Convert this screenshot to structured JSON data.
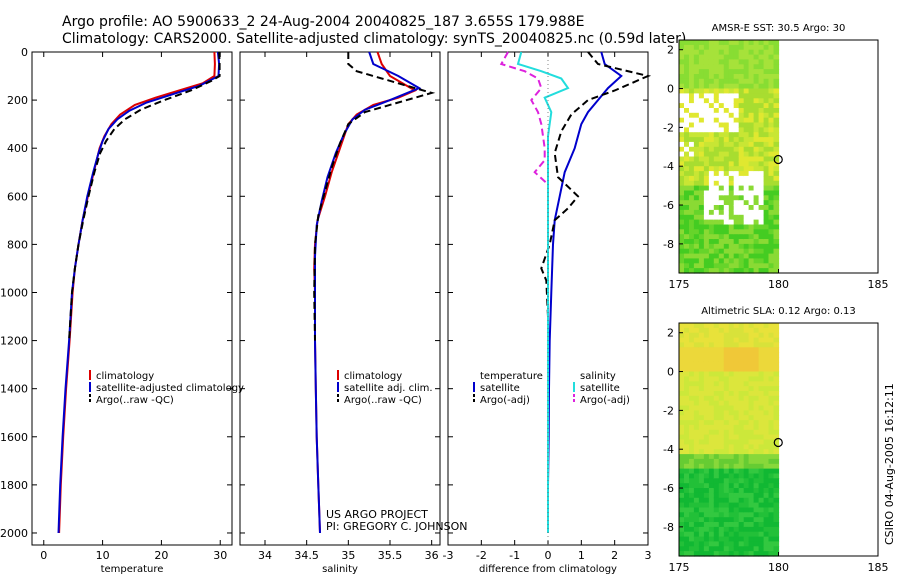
{
  "header": {
    "line1": "Argo profile: AO 5900633_2 24-Aug-2004 20040825_187 3.655S 179.988E",
    "line2": "Climatology: CARS2000. Satellite-adjusted climatology: synTS_20040825.nc (0.59d later)"
  },
  "side_label": "CSIRO 04-Aug-2005 16:12:11",
  "credit": {
    "line1": "US ARGO PROJECT",
    "line2": "PI: GREGORY C. JOHNSON"
  },
  "colors": {
    "climatology": "#dd0000",
    "satellite": "#0000cc",
    "argo": "#000000",
    "sal_satellite": "#22dddd",
    "sal_argo": "#dd22dd"
  },
  "chart_data": [
    {
      "type": "line",
      "xlabel": "temperature",
      "ylabel": "",
      "xlim": [
        -2,
        32
      ],
      "ylim": [
        2050,
        0
      ],
      "y_reversed": true,
      "xticks": [
        0,
        10,
        20,
        30
      ],
      "yticks": [
        0,
        200,
        400,
        600,
        800,
        1000,
        1200,
        1400,
        1600,
        1800,
        2000
      ],
      "legend": [
        "climatology",
        "satellite-adjusted climatology",
        "Argo(..raw -QC)"
      ],
      "legend_position": "lower-right",
      "series": [
        {
          "name": "climatology",
          "style": "solid",
          "color": "#dd0000",
          "points": [
            [
              29.0,
              0
            ],
            [
              29.1,
              50
            ],
            [
              29.0,
              100
            ],
            [
              27.0,
              130
            ],
            [
              23.0,
              160
            ],
            [
              19.0,
              190
            ],
            [
              15.5,
              220
            ],
            [
              13.0,
              260
            ],
            [
              11.5,
              300
            ],
            [
              10.3,
              350
            ],
            [
              9.5,
              400
            ],
            [
              8.5,
              500
            ],
            [
              7.5,
              600
            ],
            [
              6.6,
              700
            ],
            [
              5.9,
              800
            ],
            [
              5.3,
              900
            ],
            [
              4.9,
              1000
            ],
            [
              4.4,
              1200
            ],
            [
              3.8,
              1400
            ],
            [
              3.3,
              1600
            ],
            [
              2.9,
              1800
            ],
            [
              2.6,
              2000
            ]
          ]
        },
        {
          "name": "satellite-adjusted climatology",
          "style": "solid",
          "color": "#0000cc",
          "points": [
            [
              29.6,
              0
            ],
            [
              29.8,
              50
            ],
            [
              29.7,
              100
            ],
            [
              26.5,
              140
            ],
            [
              22.0,
              175
            ],
            [
              17.5,
              210
            ],
            [
              14.5,
              245
            ],
            [
              12.5,
              280
            ],
            [
              11.0,
              320
            ],
            [
              10.0,
              370
            ],
            [
              9.3,
              420
            ],
            [
              8.4,
              500
            ],
            [
              7.4,
              600
            ],
            [
              6.6,
              700
            ],
            [
              5.9,
              800
            ],
            [
              5.3,
              900
            ],
            [
              4.8,
              1000
            ],
            [
              4.3,
              1200
            ],
            [
              3.7,
              1400
            ],
            [
              3.2,
              1600
            ],
            [
              2.8,
              1800
            ],
            [
              2.5,
              2000
            ]
          ]
        },
        {
          "name": "Argo(..raw -QC)",
          "style": "dashed",
          "color": "#000000",
          "points": [
            [
              29.8,
              0
            ],
            [
              29.9,
              50
            ],
            [
              29.9,
              100
            ],
            [
              28.5,
              120
            ],
            [
              25.0,
              160
            ],
            [
              20.5,
              200
            ],
            [
              16.5,
              240
            ],
            [
              13.8,
              280
            ],
            [
              12.0,
              320
            ],
            [
              10.6,
              370
            ],
            [
              9.6,
              420
            ],
            [
              8.6,
              500
            ],
            [
              7.6,
              600
            ],
            [
              6.7,
              700
            ],
            [
              5.9,
              800
            ],
            [
              5.3,
              900
            ],
            [
              4.8,
              1000
            ],
            [
              4.3,
              1200
            ]
          ]
        }
      ]
    },
    {
      "type": "line",
      "xlabel": "salinity",
      "ylabel": "",
      "xlim": [
        33.7,
        36.1
      ],
      "ylim": [
        2050,
        0
      ],
      "y_reversed": true,
      "xticks": [
        34,
        34.5,
        35,
        35.5,
        36
      ],
      "legend": [
        "climatology",
        "satellite adj. clim.",
        "Argo(..raw -QC)"
      ],
      "legend_position": "lower-right",
      "series": [
        {
          "name": "climatology",
          "style": "solid",
          "color": "#dd0000",
          "points": [
            [
              35.35,
              0
            ],
            [
              35.4,
              50
            ],
            [
              35.5,
              100
            ],
            [
              35.8,
              160
            ],
            [
              35.6,
              190
            ],
            [
              35.3,
              220
            ],
            [
              35.1,
              260
            ],
            [
              35.0,
              300
            ],
            [
              34.9,
              400
            ],
            [
              34.8,
              500
            ],
            [
              34.72,
              600
            ],
            [
              34.63,
              700
            ],
            [
              34.6,
              800
            ],
            [
              34.59,
              900
            ],
            [
              34.6,
              1000
            ],
            [
              34.6,
              1200
            ],
            [
              34.61,
              1400
            ],
            [
              34.62,
              1600
            ],
            [
              34.64,
              1800
            ],
            [
              34.66,
              2000
            ]
          ]
        },
        {
          "name": "satellite adj. clim.",
          "style": "solid",
          "color": "#0000cc",
          "points": [
            [
              35.25,
              0
            ],
            [
              35.3,
              50
            ],
            [
              35.6,
              100
            ],
            [
              35.85,
              150
            ],
            [
              35.5,
              200
            ],
            [
              35.2,
              240
            ],
            [
              35.05,
              280
            ],
            [
              34.95,
              340
            ],
            [
              34.85,
              420
            ],
            [
              34.75,
              520
            ],
            [
              34.68,
              620
            ],
            [
              34.62,
              720
            ],
            [
              34.6,
              850
            ],
            [
              34.6,
              1000
            ],
            [
              34.6,
              1200
            ],
            [
              34.61,
              1400
            ],
            [
              34.62,
              1600
            ],
            [
              34.64,
              1800
            ],
            [
              34.66,
              2000
            ]
          ]
        },
        {
          "name": "Argo(..raw -QC)",
          "style": "dashed",
          "color": "#000000",
          "points": [
            [
              35.0,
              0
            ],
            [
              35.0,
              50
            ],
            [
              35.1,
              80
            ],
            [
              35.7,
              140
            ],
            [
              36.0,
              170
            ],
            [
              35.6,
              210
            ],
            [
              35.2,
              250
            ],
            [
              35.0,
              300
            ],
            [
              34.9,
              380
            ],
            [
              34.8,
              480
            ],
            [
              34.72,
              580
            ],
            [
              34.64,
              680
            ],
            [
              34.6,
              800
            ],
            [
              34.59,
              1000
            ],
            [
              34.6,
              1200
            ]
          ]
        }
      ]
    },
    {
      "type": "line",
      "xlabel": "difference from climatology",
      "ylabel": "",
      "xlim": [
        -3,
        3
      ],
      "ylim": [
        2050,
        0
      ],
      "y_reversed": true,
      "xticks": [
        -3,
        -2,
        -1,
        0,
        1,
        2,
        3
      ],
      "legend": [
        "temperature",
        "satellite",
        "Argo(-adj)",
        "salinity",
        "satellite",
        "Argo(-adj)"
      ],
      "legend_position": "lower",
      "series": [
        {
          "name": "temperature satellite",
          "style": "solid",
          "color": "#0000cc",
          "points": [
            [
              1.6,
              0
            ],
            [
              1.7,
              50
            ],
            [
              2.2,
              100
            ],
            [
              1.8,
              150
            ],
            [
              1.5,
              200
            ],
            [
              1.2,
              250
            ],
            [
              1.0,
              300
            ],
            [
              0.8,
              400
            ],
            [
              0.5,
              500
            ],
            [
              0.35,
              600
            ],
            [
              0.2,
              700
            ],
            [
              0.15,
              800
            ],
            [
              0.1,
              1000
            ],
            [
              0.05,
              1200
            ],
            [
              0.03,
              1400
            ],
            [
              0.02,
              1600
            ],
            [
              0.0,
              1800
            ],
            [
              0.0,
              2000
            ]
          ]
        },
        {
          "name": "temperature Argo(-adj)",
          "style": "dashed",
          "color": "#000000",
          "points": [
            [
              1.2,
              0
            ],
            [
              1.5,
              50
            ],
            [
              3.0,
              100
            ],
            [
              2.0,
              160
            ],
            [
              1.2,
              200
            ],
            [
              0.7,
              260
            ],
            [
              0.4,
              330
            ],
            [
              0.2,
              420
            ],
            [
              0.3,
              520
            ],
            [
              0.9,
              600
            ],
            [
              0.6,
              650
            ],
            [
              0.2,
              700
            ],
            [
              0.05,
              800
            ],
            [
              -0.2,
              900
            ],
            [
              -0.05,
              950
            ],
            [
              0.0,
              1100
            ],
            [
              0.0,
              1200
            ]
          ]
        },
        {
          "name": "salinity satellite",
          "style": "solid",
          "color": "#22dddd",
          "points": [
            [
              -0.8,
              0
            ],
            [
              -0.9,
              50
            ],
            [
              -0.2,
              80
            ],
            [
              0.4,
              110
            ],
            [
              0.6,
              150
            ],
            [
              -0.1,
              190
            ],
            [
              0.1,
              250
            ],
            [
              0.0,
              350
            ],
            [
              0.0,
              500
            ],
            [
              0.0,
              700
            ],
            [
              0.0,
              900
            ],
            [
              0.0,
              1200
            ],
            [
              0.0,
              1500
            ],
            [
              0.0,
              1800
            ],
            [
              0.0,
              2000
            ]
          ]
        },
        {
          "name": "salinity Argo(-adj)",
          "style": "dashed",
          "color": "#dd22dd",
          "points": [
            [
              -1.2,
              0
            ],
            [
              -1.4,
              50
            ],
            [
              -0.7,
              80
            ],
            [
              -0.3,
              110
            ],
            [
              -0.2,
              150
            ],
            [
              -0.5,
              200
            ],
            [
              -0.3,
              250
            ],
            [
              -0.2,
              300
            ],
            [
              -0.1,
              400
            ],
            [
              -0.1,
              450
            ],
            [
              -0.4,
              500
            ],
            [
              0.0,
              550
            ]
          ]
        }
      ]
    },
    {
      "type": "heatmap",
      "title": "AMSR-E SST: 30.5 Argo: 30",
      "xlim": [
        175,
        185
      ],
      "ylim": [
        -9.5,
        2.5
      ],
      "xticks": [
        175,
        180,
        185
      ],
      "yticks": [
        -8,
        -6,
        -4,
        -2,
        0,
        2
      ],
      "data_lon_range": [
        175,
        180
      ],
      "argo_position": {
        "lon": 179.988,
        "lat": -3.655
      }
    },
    {
      "type": "heatmap",
      "title": "Altimetric SLA: 0.12 Argo: 0.13",
      "xlim": [
        175,
        185
      ],
      "ylim": [
        -9.5,
        2.5
      ],
      "xticks": [
        175,
        180,
        185
      ],
      "yticks": [
        -8,
        -6,
        -4,
        -2,
        0,
        2
      ],
      "data_lon_range": [
        175,
        180
      ],
      "argo_position": {
        "lon": 179.988,
        "lat": -3.655
      }
    }
  ]
}
